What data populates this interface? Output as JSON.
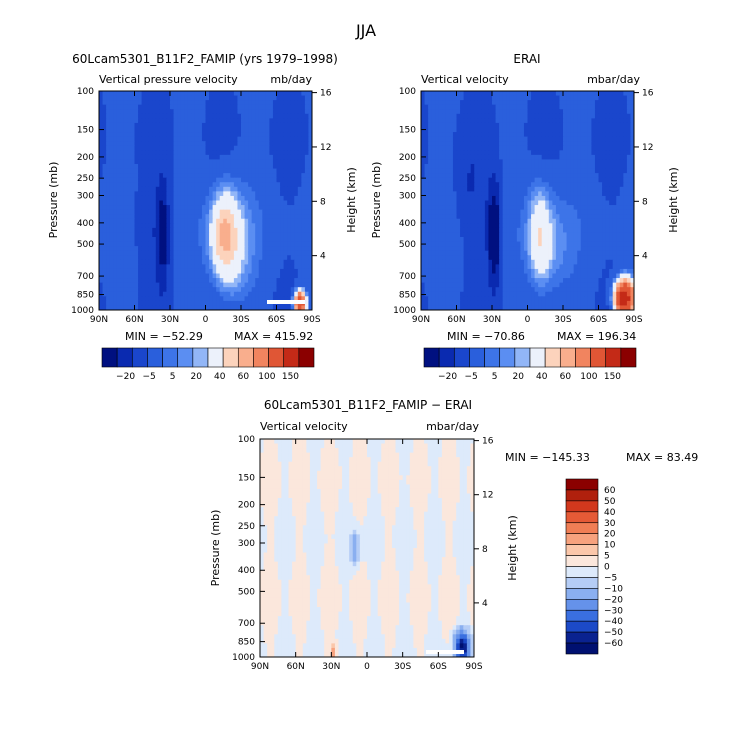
{
  "figure_title": "JJA",
  "chart_data": [
    {
      "type": "heatmap",
      "title": "60Lcam5301_B11F2_FAMIP (yrs 1979–1998)",
      "subtitle_left": "Vertical pressure velocity",
      "subtitle_right": "mb/day",
      "ylabel": "Pressure (mb)",
      "y2label": "Height (km)",
      "xticks": [
        "90N",
        "60N",
        "30N",
        "0",
        "30S",
        "60S",
        "90S"
      ],
      "yticks": [
        100,
        150,
        200,
        250,
        300,
        400,
        500,
        700,
        850,
        1000
      ],
      "y2ticks": [
        16,
        12,
        8,
        4
      ],
      "ylim": [
        1000,
        100
      ],
      "min_text": "MIN = −52.29",
      "max_text": "MAX = 415.92",
      "colorbar_labels": [
        "−20",
        "−5",
        "5",
        "20",
        "40",
        "60",
        "100",
        "150"
      ],
      "colorbar_colors": [
        "#001080",
        "#0a2ab0",
        "#1a46cc",
        "#2a5fdc",
        "#3d74e8",
        "#5b8ef2",
        "#92b6f7",
        "#ecf1fb",
        "#fcd3bc",
        "#f9ae8d",
        "#f1845f",
        "#e05635",
        "#c42a17",
        "#8b0000"
      ],
      "fields": [
        {
          "lat": 36,
          "plev": 450,
          "wlat": 6,
          "wlog": 0.55,
          "value": -30
        },
        {
          "lat": 52,
          "plev": 420,
          "wlat": 10,
          "wlog": 0.5,
          "value": -10
        },
        {
          "lat": -15,
          "plev": 450,
          "wlat": 12,
          "wlog": 0.5,
          "value": 40
        },
        {
          "lat": -24,
          "plev": 520,
          "wlat": 16,
          "wlog": 0.65,
          "value": 20
        },
        {
          "lat": -80,
          "plev": 930,
          "wlat": 5,
          "wlog": 0.12,
          "value": 120
        }
      ]
    },
    {
      "type": "heatmap",
      "title": "ERAI",
      "subtitle_left": "Vertical velocity",
      "subtitle_right": "mbar/day",
      "ylabel": "Pressure (mb)",
      "y2label": "Height (km)",
      "xticks": [
        "90N",
        "60N",
        "30N",
        "0",
        "30S",
        "60S",
        "90S"
      ],
      "yticks": [
        100,
        150,
        200,
        250,
        300,
        400,
        500,
        700,
        850,
        1000
      ],
      "y2ticks": [
        16,
        12,
        8,
        4
      ],
      "ylim": [
        1000,
        100
      ],
      "min_text": "MIN = −70.86",
      "max_text": "MAX = 196.34",
      "colorbar_labels": [
        "−20",
        "−5",
        "5",
        "20",
        "40",
        "60",
        "100",
        "150"
      ],
      "colorbar_colors": [
        "#001080",
        "#0a2ab0",
        "#1a46cc",
        "#2a5fdc",
        "#3d74e8",
        "#5b8ef2",
        "#92b6f7",
        "#ecf1fb",
        "#fcd3bc",
        "#f9ae8d",
        "#f1845f",
        "#e05635",
        "#c42a17",
        "#8b0000"
      ],
      "fields": [
        {
          "lat": 28,
          "plev": 450,
          "wlat": 6,
          "wlog": 0.55,
          "value": -40
        },
        {
          "lat": 50,
          "plev": 300,
          "wlat": 14,
          "wlog": 0.55,
          "value": -10
        },
        {
          "lat": -10,
          "plev": 450,
          "wlat": 10,
          "wlog": 0.55,
          "value": 30
        },
        {
          "lat": -20,
          "plev": 520,
          "wlat": 16,
          "wlog": 0.6,
          "value": 15
        },
        {
          "lat": -82,
          "plev": 880,
          "wlat": 8,
          "wlog": 0.18,
          "value": 150
        }
      ]
    },
    {
      "type": "heatmap",
      "title": "60Lcam5301_B11F2_FAMIP − ERAI",
      "subtitle_left": "Vertical velocity",
      "subtitle_right": "mbar/day",
      "ylabel": "Pressure (mb)",
      "y2label": "Height (km)",
      "xticks": [
        "90N",
        "60N",
        "30N",
        "0",
        "30S",
        "60S",
        "90S"
      ],
      "yticks": [
        100,
        150,
        200,
        250,
        300,
        400,
        500,
        700,
        850,
        1000
      ],
      "y2ticks": [
        16,
        12,
        8,
        4
      ],
      "ylim": [
        1000,
        100
      ],
      "min_text": "MIN = −145.33",
      "max_text": "MAX =  83.49",
      "colorbar_labels": [
        "60",
        "50",
        "40",
        "30",
        "20",
        "10",
        "5",
        "0",
        "−5",
        "−10",
        "−20",
        "−30",
        "−40",
        "−50",
        "−60"
      ],
      "colorbar_colors": [
        "#8b0000",
        "#b0200d",
        "#d2381d",
        "#e55a36",
        "#f07e55",
        "#f7a27e",
        "#fbc7aa",
        "#fbe7dc",
        "#ddeafb",
        "#b5cdf6",
        "#8aaff0",
        "#6592ea",
        "#3a6fe0",
        "#1c4ac8",
        "#0a2290",
        "#001070"
      ]
    }
  ]
}
